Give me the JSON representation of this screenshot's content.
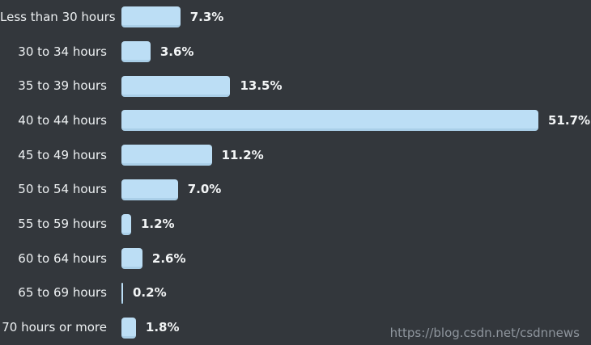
{
  "chart_data": {
    "type": "bar",
    "orientation": "horizontal",
    "title": "",
    "xlabel": "",
    "ylabel": "",
    "xlim": [
      0,
      52
    ],
    "grid": false,
    "legend": false,
    "bar_color": "#bcdef5",
    "bar_edge_color": "#aacfe8",
    "background_color": "#33373c",
    "label_color": "#edf0f2",
    "value_label_color": "#f3f5f6",
    "categories": [
      "Less than 30 hours",
      "30 to 34 hours",
      "35 to 39 hours",
      "40 to 44 hours",
      "45 to 49 hours",
      "50 to 54 hours",
      "55 to 59 hours",
      "60 to 64 hours",
      "65 to 69 hours",
      "70 hours or more"
    ],
    "values": [
      7.3,
      3.6,
      13.5,
      51.7,
      11.2,
      7.0,
      1.2,
      2.6,
      0.2,
      1.8
    ],
    "value_labels": [
      "7.3%",
      "3.6%",
      "13.5%",
      "51.7%",
      "11.2%",
      "7.0%",
      "1.2%",
      "2.6%",
      "0.2%",
      "1.8%"
    ]
  },
  "watermark": {
    "text": "https://blog.csdn.net/csdnnews",
    "color": "#8e959d"
  }
}
